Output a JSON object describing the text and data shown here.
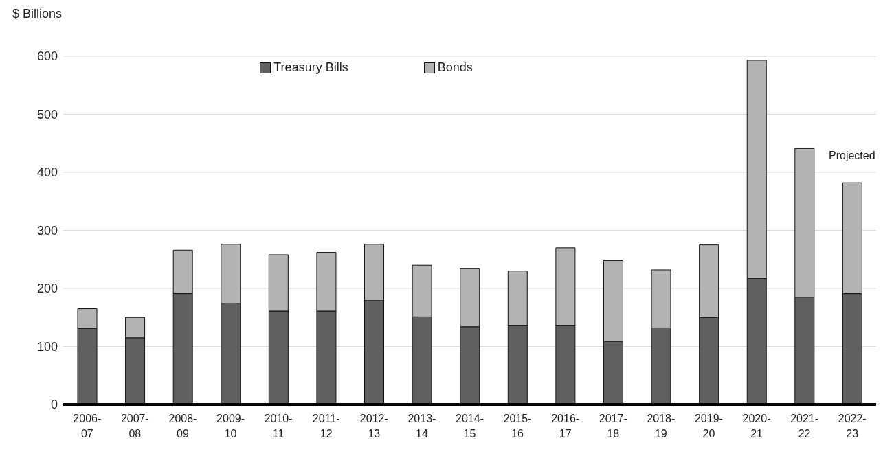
{
  "chart_data": {
    "type": "bar",
    "ylabel": "$ Billions",
    "stacked": true,
    "grid": "y",
    "legend": "top",
    "categories": [
      "2006-07",
      "2007-08",
      "2008-09",
      "2009-10",
      "2010-11",
      "2011-12",
      "2012-13",
      "2013-14",
      "2014-15",
      "2015-16",
      "2016-17",
      "2017-18",
      "2018-19",
      "2019-20",
      "2020-21",
      "2021-22",
      "2022-23"
    ],
    "series": [
      {
        "name": "Treasury Bills",
        "color": "#5f605f",
        "values": [
          131,
          115,
          191,
          174,
          161,
          161,
          179,
          151,
          134,
          136,
          136,
          109,
          132,
          150,
          217,
          185,
          191
        ]
      },
      {
        "name": "Bonds",
        "color": "#b3b3b3",
        "values": [
          34,
          35,
          75,
          102,
          97,
          101,
          97,
          89,
          100,
          94,
          134,
          139,
          100,
          125,
          376,
          256,
          191
        ]
      }
    ],
    "ylim": [
      0,
      600
    ],
    "yticks": [
      0,
      100,
      200,
      300,
      400,
      500,
      600
    ],
    "annotations": [
      "Projected"
    ]
  }
}
